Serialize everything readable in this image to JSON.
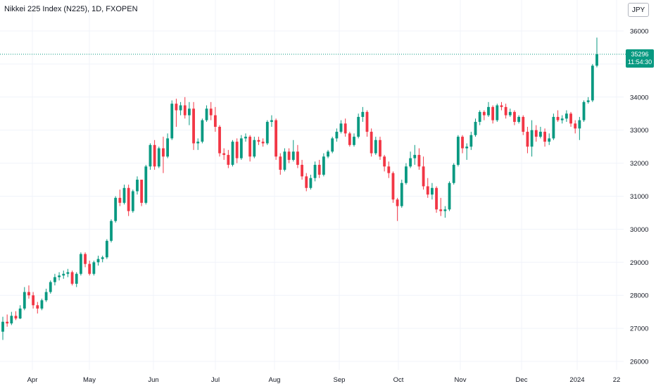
{
  "header": {
    "title": "Nikkei 225 Index (N225), 1D, FXOPEN",
    "currency": "JPY"
  },
  "last_price": {
    "value": "35296",
    "countdown": "11:54:30"
  },
  "colors": {
    "up": "#089981",
    "down": "#f23645",
    "grid": "#f0f3fa",
    "axis_text": "#131722"
  },
  "chart_data": {
    "type": "candlestick",
    "title": "Nikkei 225 Index (N225), 1D, FXOPEN",
    "y_axis": {
      "side": "right",
      "range": [
        25800,
        36200
      ],
      "ticks": [
        26000,
        27000,
        28000,
        29000,
        30000,
        31000,
        32000,
        33000,
        34000,
        35000,
        36000
      ]
    },
    "x_axis_labels": [
      "Apr",
      "May",
      "Jun",
      "Jul",
      "Aug",
      "Sep",
      "Oct",
      "Nov",
      "Dec",
      "2024",
      "22"
    ],
    "grid": true,
    "last_price": 35296,
    "candles": [
      {
        "o": 26900,
        "h": 27350,
        "l": 26650,
        "c": 27200
      },
      {
        "o": 27200,
        "h": 27420,
        "l": 27050,
        "c": 27150
      },
      {
        "o": 27150,
        "h": 27500,
        "l": 27100,
        "c": 27380
      },
      {
        "o": 27380,
        "h": 27520,
        "l": 27250,
        "c": 27300
      },
      {
        "o": 27300,
        "h": 27700,
        "l": 27280,
        "c": 27600
      },
      {
        "o": 27600,
        "h": 28250,
        "l": 27550,
        "c": 28100
      },
      {
        "o": 28100,
        "h": 28300,
        "l": 27900,
        "c": 28000
      },
      {
        "o": 28000,
        "h": 28100,
        "l": 27600,
        "c": 27700
      },
      {
        "o": 27700,
        "h": 27800,
        "l": 27450,
        "c": 27600
      },
      {
        "o": 27600,
        "h": 27900,
        "l": 27550,
        "c": 27850
      },
      {
        "o": 27850,
        "h": 28200,
        "l": 27800,
        "c": 28100
      },
      {
        "o": 28100,
        "h": 28450,
        "l": 28050,
        "c": 28400
      },
      {
        "o": 28400,
        "h": 28650,
        "l": 28300,
        "c": 28550
      },
      {
        "o": 28550,
        "h": 28700,
        "l": 28450,
        "c": 28600
      },
      {
        "o": 28600,
        "h": 28750,
        "l": 28500,
        "c": 28650
      },
      {
        "o": 28650,
        "h": 28800,
        "l": 28550,
        "c": 28700
      },
      {
        "o": 28700,
        "h": 28750,
        "l": 28300,
        "c": 28350
      },
      {
        "o": 28350,
        "h": 28700,
        "l": 28250,
        "c": 28650
      },
      {
        "o": 28650,
        "h": 29300,
        "l": 28600,
        "c": 29250
      },
      {
        "o": 29250,
        "h": 29300,
        "l": 28850,
        "c": 28950
      },
      {
        "o": 28950,
        "h": 29050,
        "l": 28600,
        "c": 28650
      },
      {
        "o": 28650,
        "h": 29050,
        "l": 28600,
        "c": 29000
      },
      {
        "o": 29000,
        "h": 29200,
        "l": 28900,
        "c": 29100
      },
      {
        "o": 29100,
        "h": 29200,
        "l": 29000,
        "c": 29150
      },
      {
        "o": 29150,
        "h": 29700,
        "l": 29100,
        "c": 29650
      },
      {
        "o": 29650,
        "h": 30300,
        "l": 29600,
        "c": 30250
      },
      {
        "o": 30250,
        "h": 31000,
        "l": 30200,
        "c": 30950
      },
      {
        "o": 30950,
        "h": 31200,
        "l": 30700,
        "c": 30800
      },
      {
        "o": 30800,
        "h": 31350,
        "l": 30750,
        "c": 31250
      },
      {
        "o": 31250,
        "h": 31350,
        "l": 30400,
        "c": 30550
      },
      {
        "o": 30550,
        "h": 31200,
        "l": 30500,
        "c": 31150
      },
      {
        "o": 31150,
        "h": 31600,
        "l": 31050,
        "c": 31500
      },
      {
        "o": 31500,
        "h": 31500,
        "l": 30700,
        "c": 30800
      },
      {
        "o": 30800,
        "h": 31950,
        "l": 30750,
        "c": 31900
      },
      {
        "o": 31900,
        "h": 32600,
        "l": 31800,
        "c": 32550
      },
      {
        "o": 32550,
        "h": 32700,
        "l": 31800,
        "c": 31900
      },
      {
        "o": 31900,
        "h": 32500,
        "l": 31850,
        "c": 32450
      },
      {
        "o": 32450,
        "h": 32800,
        "l": 31700,
        "c": 32200
      },
      {
        "o": 32200,
        "h": 32900,
        "l": 32150,
        "c": 32750
      },
      {
        "o": 32750,
        "h": 33900,
        "l": 32700,
        "c": 33800
      },
      {
        "o": 33800,
        "h": 33950,
        "l": 33100,
        "c": 33600
      },
      {
        "o": 33600,
        "h": 33850,
        "l": 33450,
        "c": 33750
      },
      {
        "o": 33750,
        "h": 34000,
        "l": 33350,
        "c": 33450
      },
      {
        "o": 33450,
        "h": 33850,
        "l": 33150,
        "c": 33650
      },
      {
        "o": 33650,
        "h": 33850,
        "l": 32400,
        "c": 32600
      },
      {
        "o": 32600,
        "h": 32750,
        "l": 32400,
        "c": 32650
      },
      {
        "o": 32650,
        "h": 33350,
        "l": 32600,
        "c": 33300
      },
      {
        "o": 33300,
        "h": 33750,
        "l": 33250,
        "c": 33650
      },
      {
        "o": 33650,
        "h": 33850,
        "l": 33300,
        "c": 33450
      },
      {
        "o": 33450,
        "h": 33700,
        "l": 32950,
        "c": 33100
      },
      {
        "o": 33100,
        "h": 33150,
        "l": 32200,
        "c": 32300
      },
      {
        "o": 32300,
        "h": 32450,
        "l": 32100,
        "c": 32250
      },
      {
        "o": 32250,
        "h": 32400,
        "l": 31850,
        "c": 31950
      },
      {
        "o": 31950,
        "h": 32700,
        "l": 31900,
        "c": 32650
      },
      {
        "o": 32650,
        "h": 32750,
        "l": 32000,
        "c": 32150
      },
      {
        "o": 32150,
        "h": 32850,
        "l": 32100,
        "c": 32750
      },
      {
        "o": 32750,
        "h": 32900,
        "l": 32650,
        "c": 32800
      },
      {
        "o": 32800,
        "h": 32850,
        "l": 32050,
        "c": 32200
      },
      {
        "o": 32200,
        "h": 32800,
        "l": 32150,
        "c": 32700
      },
      {
        "o": 32700,
        "h": 32800,
        "l": 32550,
        "c": 32650
      },
      {
        "o": 32650,
        "h": 32750,
        "l": 32500,
        "c": 32600
      },
      {
        "o": 32600,
        "h": 33300,
        "l": 32550,
        "c": 33250
      },
      {
        "o": 33250,
        "h": 33450,
        "l": 33100,
        "c": 33300
      },
      {
        "o": 33300,
        "h": 33350,
        "l": 32100,
        "c": 32200
      },
      {
        "o": 32200,
        "h": 32300,
        "l": 31650,
        "c": 31800
      },
      {
        "o": 31800,
        "h": 32450,
        "l": 31750,
        "c": 32350
      },
      {
        "o": 32350,
        "h": 32450,
        "l": 32000,
        "c": 32100
      },
      {
        "o": 32100,
        "h": 32700,
        "l": 32050,
        "c": 32350
      },
      {
        "o": 32350,
        "h": 32550,
        "l": 31850,
        "c": 31950
      },
      {
        "o": 31950,
        "h": 32100,
        "l": 31500,
        "c": 31600
      },
      {
        "o": 31600,
        "h": 31700,
        "l": 31150,
        "c": 31250
      },
      {
        "o": 31250,
        "h": 31650,
        "l": 31200,
        "c": 31550
      },
      {
        "o": 31550,
        "h": 32050,
        "l": 31450,
        "c": 31950
      },
      {
        "o": 31950,
        "h": 32100,
        "l": 31550,
        "c": 31650
      },
      {
        "o": 31650,
        "h": 32300,
        "l": 31600,
        "c": 32200
      },
      {
        "o": 32200,
        "h": 32400,
        "l": 32150,
        "c": 32350
      },
      {
        "o": 32350,
        "h": 32800,
        "l": 32300,
        "c": 32750
      },
      {
        "o": 32750,
        "h": 33050,
        "l": 32650,
        "c": 32950
      },
      {
        "o": 32950,
        "h": 33300,
        "l": 32900,
        "c": 33200
      },
      {
        "o": 33200,
        "h": 33350,
        "l": 32800,
        "c": 32900
      },
      {
        "o": 32900,
        "h": 32950,
        "l": 32500,
        "c": 32550
      },
      {
        "o": 32550,
        "h": 32900,
        "l": 32500,
        "c": 32800
      },
      {
        "o": 32800,
        "h": 33500,
        "l": 32750,
        "c": 33400
      },
      {
        "o": 33400,
        "h": 33700,
        "l": 33250,
        "c": 33550
      },
      {
        "o": 33550,
        "h": 33600,
        "l": 32800,
        "c": 32950
      },
      {
        "o": 32950,
        "h": 33050,
        "l": 32200,
        "c": 32300
      },
      {
        "o": 32300,
        "h": 32800,
        "l": 32250,
        "c": 32700
      },
      {
        "o": 32700,
        "h": 32800,
        "l": 32100,
        "c": 32200
      },
      {
        "o": 32200,
        "h": 32250,
        "l": 31750,
        "c": 31900
      },
      {
        "o": 31900,
        "h": 32050,
        "l": 31550,
        "c": 31700
      },
      {
        "o": 31700,
        "h": 31750,
        "l": 30800,
        "c": 30900
      },
      {
        "o": 30900,
        "h": 30950,
        "l": 30250,
        "c": 30700
      },
      {
        "o": 30700,
        "h": 31500,
        "l": 30650,
        "c": 31400
      },
      {
        "o": 31400,
        "h": 32000,
        "l": 31350,
        "c": 31900
      },
      {
        "o": 31900,
        "h": 32350,
        "l": 31850,
        "c": 32150
      },
      {
        "o": 32150,
        "h": 32550,
        "l": 31950,
        "c": 32250
      },
      {
        "o": 32250,
        "h": 32450,
        "l": 31800,
        "c": 31900
      },
      {
        "o": 31900,
        "h": 32200,
        "l": 31200,
        "c": 31300
      },
      {
        "o": 31300,
        "h": 31550,
        "l": 30950,
        "c": 31050
      },
      {
        "o": 31050,
        "h": 31400,
        "l": 30900,
        "c": 31250
      },
      {
        "o": 31250,
        "h": 31300,
        "l": 30500,
        "c": 30600
      },
      {
        "o": 30600,
        "h": 30950,
        "l": 30400,
        "c": 30550
      },
      {
        "o": 30550,
        "h": 30700,
        "l": 30350,
        "c": 30600
      },
      {
        "o": 30600,
        "h": 31450,
        "l": 30550,
        "c": 31400
      },
      {
        "o": 31400,
        "h": 32000,
        "l": 31350,
        "c": 31950
      },
      {
        "o": 31950,
        "h": 32850,
        "l": 31900,
        "c": 32800
      },
      {
        "o": 32800,
        "h": 32850,
        "l": 32300,
        "c": 32450
      },
      {
        "o": 32450,
        "h": 32600,
        "l": 32100,
        "c": 32500
      },
      {
        "o": 32500,
        "h": 32950,
        "l": 32400,
        "c": 32850
      },
      {
        "o": 32850,
        "h": 33350,
        "l": 32800,
        "c": 33250
      },
      {
        "o": 33250,
        "h": 33600,
        "l": 33150,
        "c": 33550
      },
      {
        "o": 33550,
        "h": 33600,
        "l": 33300,
        "c": 33450
      },
      {
        "o": 33450,
        "h": 33850,
        "l": 33400,
        "c": 33700
      },
      {
        "o": 33700,
        "h": 33750,
        "l": 33200,
        "c": 33300
      },
      {
        "o": 33300,
        "h": 33800,
        "l": 33250,
        "c": 33750
      },
      {
        "o": 33750,
        "h": 33850,
        "l": 33600,
        "c": 33700
      },
      {
        "o": 33700,
        "h": 33800,
        "l": 33350,
        "c": 33450
      },
      {
        "o": 33450,
        "h": 33650,
        "l": 33400,
        "c": 33550
      },
      {
        "o": 33550,
        "h": 33600,
        "l": 33150,
        "c": 33250
      },
      {
        "o": 33250,
        "h": 33450,
        "l": 33200,
        "c": 33400
      },
      {
        "o": 33400,
        "h": 33450,
        "l": 32850,
        "c": 32950
      },
      {
        "o": 32950,
        "h": 33100,
        "l": 32300,
        "c": 32500
      },
      {
        "o": 32500,
        "h": 33300,
        "l": 32200,
        "c": 33000
      },
      {
        "o": 33000,
        "h": 33150,
        "l": 32650,
        "c": 32800
      },
      {
        "o": 32800,
        "h": 33100,
        "l": 32750,
        "c": 32950
      },
      {
        "o": 32950,
        "h": 33050,
        "l": 32500,
        "c": 32650
      },
      {
        "o": 32650,
        "h": 32900,
        "l": 32550,
        "c": 32750
      },
      {
        "o": 32750,
        "h": 33500,
        "l": 32700,
        "c": 33400
      },
      {
        "o": 33400,
        "h": 33600,
        "l": 33250,
        "c": 33300
      },
      {
        "o": 33300,
        "h": 33450,
        "l": 33200,
        "c": 33350
      },
      {
        "o": 33350,
        "h": 33600,
        "l": 33250,
        "c": 33500
      },
      {
        "o": 33500,
        "h": 33550,
        "l": 33100,
        "c": 33200
      },
      {
        "o": 33200,
        "h": 33300,
        "l": 32900,
        "c": 33050
      },
      {
        "o": 33050,
        "h": 33400,
        "l": 32700,
        "c": 33300
      },
      {
        "o": 33300,
        "h": 33900,
        "l": 33250,
        "c": 33850
      },
      {
        "o": 33850,
        "h": 34000,
        "l": 33800,
        "c": 33900
      },
      {
        "o": 33900,
        "h": 35000,
        "l": 33850,
        "c": 34950
      },
      {
        "o": 34950,
        "h": 35800,
        "l": 34900,
        "c": 35296
      }
    ]
  }
}
